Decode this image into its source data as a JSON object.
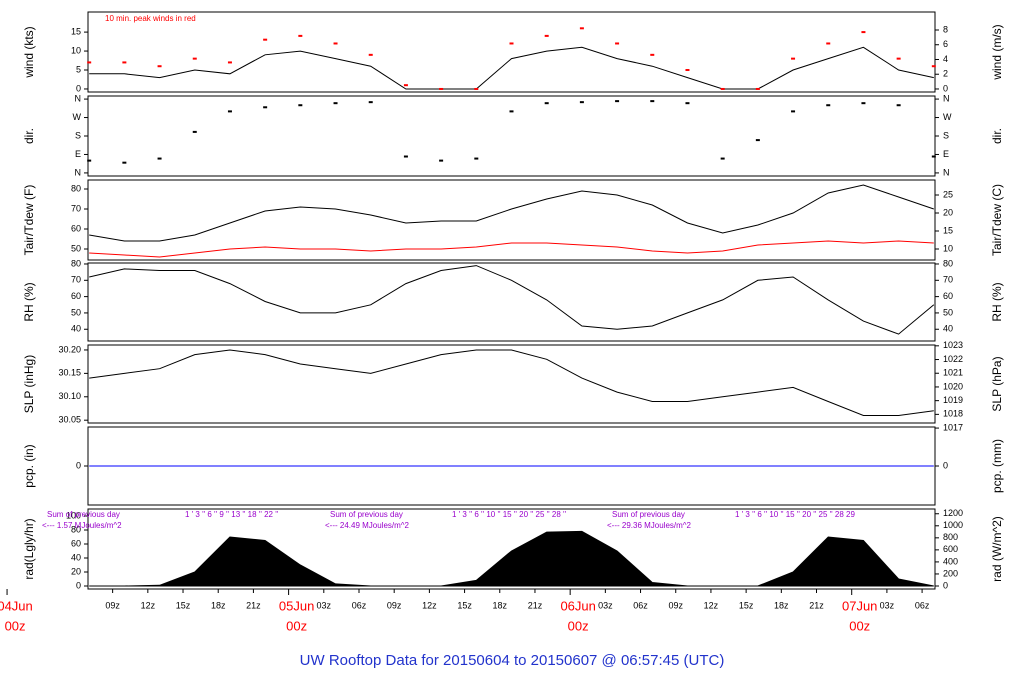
{
  "title": "UW Rooftop Data for 20150604  to  20150607 @ 06:57:45  (UTC)",
  "chart_data": [
    {
      "type": "line",
      "ylabel": "wind (kts)",
      "y2label": "wind (m/s)",
      "annotation": "10 min. peak winds in red",
      "xlim": [
        6.9,
        79.1
      ],
      "x": [
        7,
        10,
        13,
        16,
        19,
        22,
        25,
        28,
        31,
        34,
        37,
        40,
        43,
        46,
        49,
        52,
        55,
        58,
        61,
        64,
        67,
        70,
        73,
        76,
        79
      ],
      "ylim": [
        -0.8,
        20.3
      ],
      "yticks": [
        0,
        5,
        10,
        15
      ],
      "y2lim": [
        -0.41,
        10.44
      ],
      "y2ticks": [
        0,
        2,
        4,
        6,
        8
      ],
      "series": [
        {
          "style": "line",
          "color": "#000000",
          "values": [
            4,
            4,
            3,
            5,
            4,
            9,
            10,
            8,
            6,
            0,
            0,
            0,
            8,
            10,
            11,
            8,
            6,
            3,
            0,
            0,
            5,
            8,
            11,
            5,
            3
          ]
        },
        {
          "style": "points",
          "color": "#ff0000",
          "values": [
            7,
            7,
            6,
            8,
            7,
            13,
            14,
            12,
            9,
            1,
            0,
            0,
            12,
            14,
            16,
            12,
            9,
            5,
            0,
            0,
            8,
            12,
            15,
            8,
            6
          ]
        }
      ]
    },
    {
      "type": "scatter",
      "ylabel": "dir.",
      "y2label": "dir.",
      "xlim": [
        6.9,
        79.1
      ],
      "x": [
        7,
        10,
        13,
        16,
        19,
        22,
        25,
        28,
        31,
        34,
        37,
        40,
        43,
        46,
        49,
        52,
        55,
        58,
        61,
        64,
        67,
        70,
        73,
        76,
        79
      ],
      "ylim": [
        -15,
        375
      ],
      "yticks": [
        {
          "value": 0,
          "label": "N"
        },
        {
          "value": 90,
          "label": "E"
        },
        {
          "value": 180,
          "label": "S"
        },
        {
          "value": 270,
          "label": "W"
        },
        {
          "value": 360,
          "label": "N"
        }
      ],
      "y2lim": [
        -15,
        375
      ],
      "y2ticks": [
        {
          "value": 0,
          "label": "N"
        },
        {
          "value": 90,
          "label": "E"
        },
        {
          "value": 180,
          "label": "S"
        },
        {
          "value": 270,
          "label": "W"
        },
        {
          "value": 360,
          "label": "N"
        }
      ],
      "series": [
        {
          "style": "points",
          "color": "#000000",
          "values": [
            60,
            50,
            70,
            200,
            300,
            320,
            330,
            340,
            345,
            80,
            60,
            70,
            300,
            340,
            345,
            350,
            350,
            340,
            70,
            160,
            300,
            330,
            340,
            330,
            80
          ]
        }
      ]
    },
    {
      "type": "line",
      "ylabel": "Tair/Tdew (F)",
      "y2label": "Tair/Tdew (C)",
      "xlim": [
        6.9,
        79.1
      ],
      "x": [
        7,
        10,
        13,
        16,
        19,
        22,
        25,
        28,
        31,
        34,
        37,
        40,
        43,
        46,
        49,
        52,
        55,
        58,
        61,
        64,
        67,
        70,
        73,
        76,
        79
      ],
      "ylim": [
        44.5,
        84.5
      ],
      "yticks": [
        50,
        60,
        70,
        80
      ],
      "y2lim": [
        6.94,
        29.17
      ],
      "y2ticks": [
        10,
        15,
        20,
        25
      ],
      "series": [
        {
          "style": "line",
          "color": "#000000",
          "values": [
            57,
            54,
            54,
            57,
            63,
            69,
            71,
            70,
            67,
            63,
            64,
            64,
            70,
            75,
            79,
            77,
            72,
            63,
            58,
            62,
            68,
            78,
            82,
            76,
            70
          ]
        },
        {
          "style": "line",
          "color": "#ff0000",
          "values": [
            48,
            47,
            46,
            48,
            50,
            51,
            50,
            50,
            49,
            50,
            50,
            51,
            53,
            53,
            52,
            51,
            49,
            48,
            49,
            52,
            53,
            54,
            53,
            54,
            53
          ]
        }
      ]
    },
    {
      "type": "line",
      "ylabel": "RH (%)",
      "y2label": "RH (%)",
      "xlim": [
        6.9,
        79.1
      ],
      "x": [
        7,
        10,
        13,
        16,
        19,
        22,
        25,
        28,
        31,
        34,
        37,
        40,
        43,
        46,
        49,
        52,
        55,
        58,
        61,
        64,
        67,
        70,
        73,
        76,
        79
      ],
      "ylim": [
        32.8,
        80.6
      ],
      "yticks": [
        40,
        50,
        60,
        70,
        80
      ],
      "y2lim": [
        32.8,
        80.6
      ],
      "y2ticks": [
        40,
        50,
        60,
        70,
        80
      ],
      "series": [
        {
          "style": "line",
          "color": "#000000",
          "values": [
            72,
            77,
            76,
            76,
            68,
            57,
            50,
            50,
            55,
            68,
            76,
            79,
            70,
            58,
            42,
            40,
            42,
            50,
            58,
            70,
            72,
            58,
            45,
            37,
            55
          ]
        }
      ]
    },
    {
      "type": "line",
      "ylabel": "SLP (inHg)",
      "y2label": "SLP (hPa)",
      "xlim": [
        6.9,
        79.1
      ],
      "x": [
        7,
        10,
        13,
        16,
        19,
        22,
        25,
        28,
        31,
        34,
        37,
        40,
        43,
        46,
        49,
        52,
        55,
        58,
        61,
        64,
        67,
        70,
        73,
        76,
        79
      ],
      "ylim": [
        30.044,
        30.2106
      ],
      "yticks": [
        {
          "value": 30.05,
          "label": "30.05"
        },
        {
          "value": 30.1,
          "label": "30.10"
        },
        {
          "value": 30.15,
          "label": "30.15"
        },
        {
          "value": 30.2,
          "label": "30.20"
        }
      ],
      "y2lim": [
        1017.37,
        1023.06
      ],
      "y2ticks": [
        1017,
        1018,
        1019,
        1020,
        1021,
        1022,
        1023
      ],
      "series": [
        {
          "style": "line",
          "color": "#000000",
          "values": [
            30.14,
            30.15,
            30.16,
            30.19,
            30.2,
            30.19,
            30.17,
            30.16,
            30.15,
            30.17,
            30.19,
            30.2,
            30.2,
            30.18,
            30.14,
            30.11,
            30.09,
            30.09,
            30.1,
            30.11,
            30.12,
            30.09,
            30.06,
            30.06,
            30.07
          ]
        }
      ]
    },
    {
      "type": "line",
      "ylabel": "pcp. (in)",
      "y2label": "pcp. (mm)",
      "xlim": [
        6.9,
        79.1
      ],
      "x": [
        7,
        10,
        13,
        16,
        19,
        22,
        25,
        28,
        31,
        34,
        37,
        40,
        43,
        46,
        49,
        52,
        55,
        58,
        61,
        64,
        67,
        70,
        73,
        76,
        79
      ],
      "ylim": [
        -1,
        1
      ],
      "yticks": [
        0
      ],
      "y2lim": [
        -25.4,
        25.4
      ],
      "y2ticks": [
        0
      ],
      "series": [
        {
          "style": "line",
          "color": "#0000ff",
          "values": [
            0,
            0,
            0,
            0,
            0,
            0,
            0,
            0,
            0,
            0,
            0,
            0,
            0,
            0,
            0,
            0,
            0,
            0,
            0,
            0,
            0,
            0,
            0,
            0,
            0
          ]
        }
      ]
    },
    {
      "type": "area",
      "ylabel": "rad(Lgly/hr)",
      "y2label": "rad (W/m^2)",
      "xlim": [
        6.9,
        79.1
      ],
      "x": [
        7,
        10,
        13,
        16,
        19,
        22,
        25,
        28,
        31,
        34,
        37,
        40,
        43,
        46,
        49,
        52,
        55,
        58,
        61,
        64,
        67,
        70,
        73,
        76,
        79
      ],
      "ylim": [
        -4.3,
        110
      ],
      "yticks": [
        0,
        20,
        40,
        60,
        80,
        100
      ],
      "y2lim": [
        -50,
        1279
      ],
      "y2ticks": [
        0,
        200,
        400,
        600,
        800,
        1000,
        1200
      ],
      "xticks": [
        {
          "value": 9,
          "label": "09z"
        },
        {
          "value": 12,
          "label": "12z"
        },
        {
          "value": 15,
          "label": "15z"
        },
        {
          "value": 18,
          "label": "18z"
        },
        {
          "value": 21,
          "label": "21z"
        },
        {
          "value": 27,
          "label": "03z"
        },
        {
          "value": 30,
          "label": "06z"
        },
        {
          "value": 33,
          "label": "09z"
        },
        {
          "value": 36,
          "label": "12z"
        },
        {
          "value": 39,
          "label": "15z"
        },
        {
          "value": 42,
          "label": "18z"
        },
        {
          "value": 45,
          "label": "21z"
        },
        {
          "value": 51,
          "label": "03z"
        },
        {
          "value": 54,
          "label": "06z"
        },
        {
          "value": 57,
          "label": "09z"
        },
        {
          "value": 60,
          "label": "12z"
        },
        {
          "value": 63,
          "label": "15z"
        },
        {
          "value": 66,
          "label": "18z"
        },
        {
          "value": 69,
          "label": "21z"
        },
        {
          "value": 75,
          "label": "03z"
        },
        {
          "value": 78,
          "label": "06z"
        }
      ],
      "day_ticks": [
        {
          "value": 0,
          "label": "04Jun",
          "sublabel": "00z"
        },
        {
          "value": 24,
          "label": "05Jun",
          "sublabel": "00z"
        },
        {
          "value": 48,
          "label": "06Jun",
          "sublabel": "00z"
        },
        {
          "value": 72,
          "label": "07Jun",
          "sublabel": "00z"
        }
      ],
      "daily_sums": [
        {
          "heading": "Sum of previous day",
          "text": "<--- 1.57 MJoules/m^2"
        },
        {
          "heading": "Sum of previous day",
          "text": "<--- 24.49 MJoules/m^2"
        },
        {
          "heading": "Sum of previous day",
          "text": "<--- 29.36 MJoules/m^2"
        }
      ],
      "hour_marks": [
        "1 ' 3 '' 6 '' 9 '' 13 '' 18 '' 22 ''",
        "1 ' 3 '' 6 '' 10 '' 15 '' 20 '' 25 '' 28 ''",
        "1 ' 3 '' 6 '' 10 '' 15 '' 20 '' 25 '' 28   29"
      ],
      "series": [
        {
          "style": "area",
          "color": "#000000",
          "values": [
            0,
            0,
            1,
            20,
            70,
            65,
            30,
            3,
            0,
            0,
            0,
            8,
            50,
            77,
            78,
            50,
            5,
            0,
            0,
            0,
            20,
            70,
            65,
            10,
            0
          ]
        }
      ]
    }
  ]
}
